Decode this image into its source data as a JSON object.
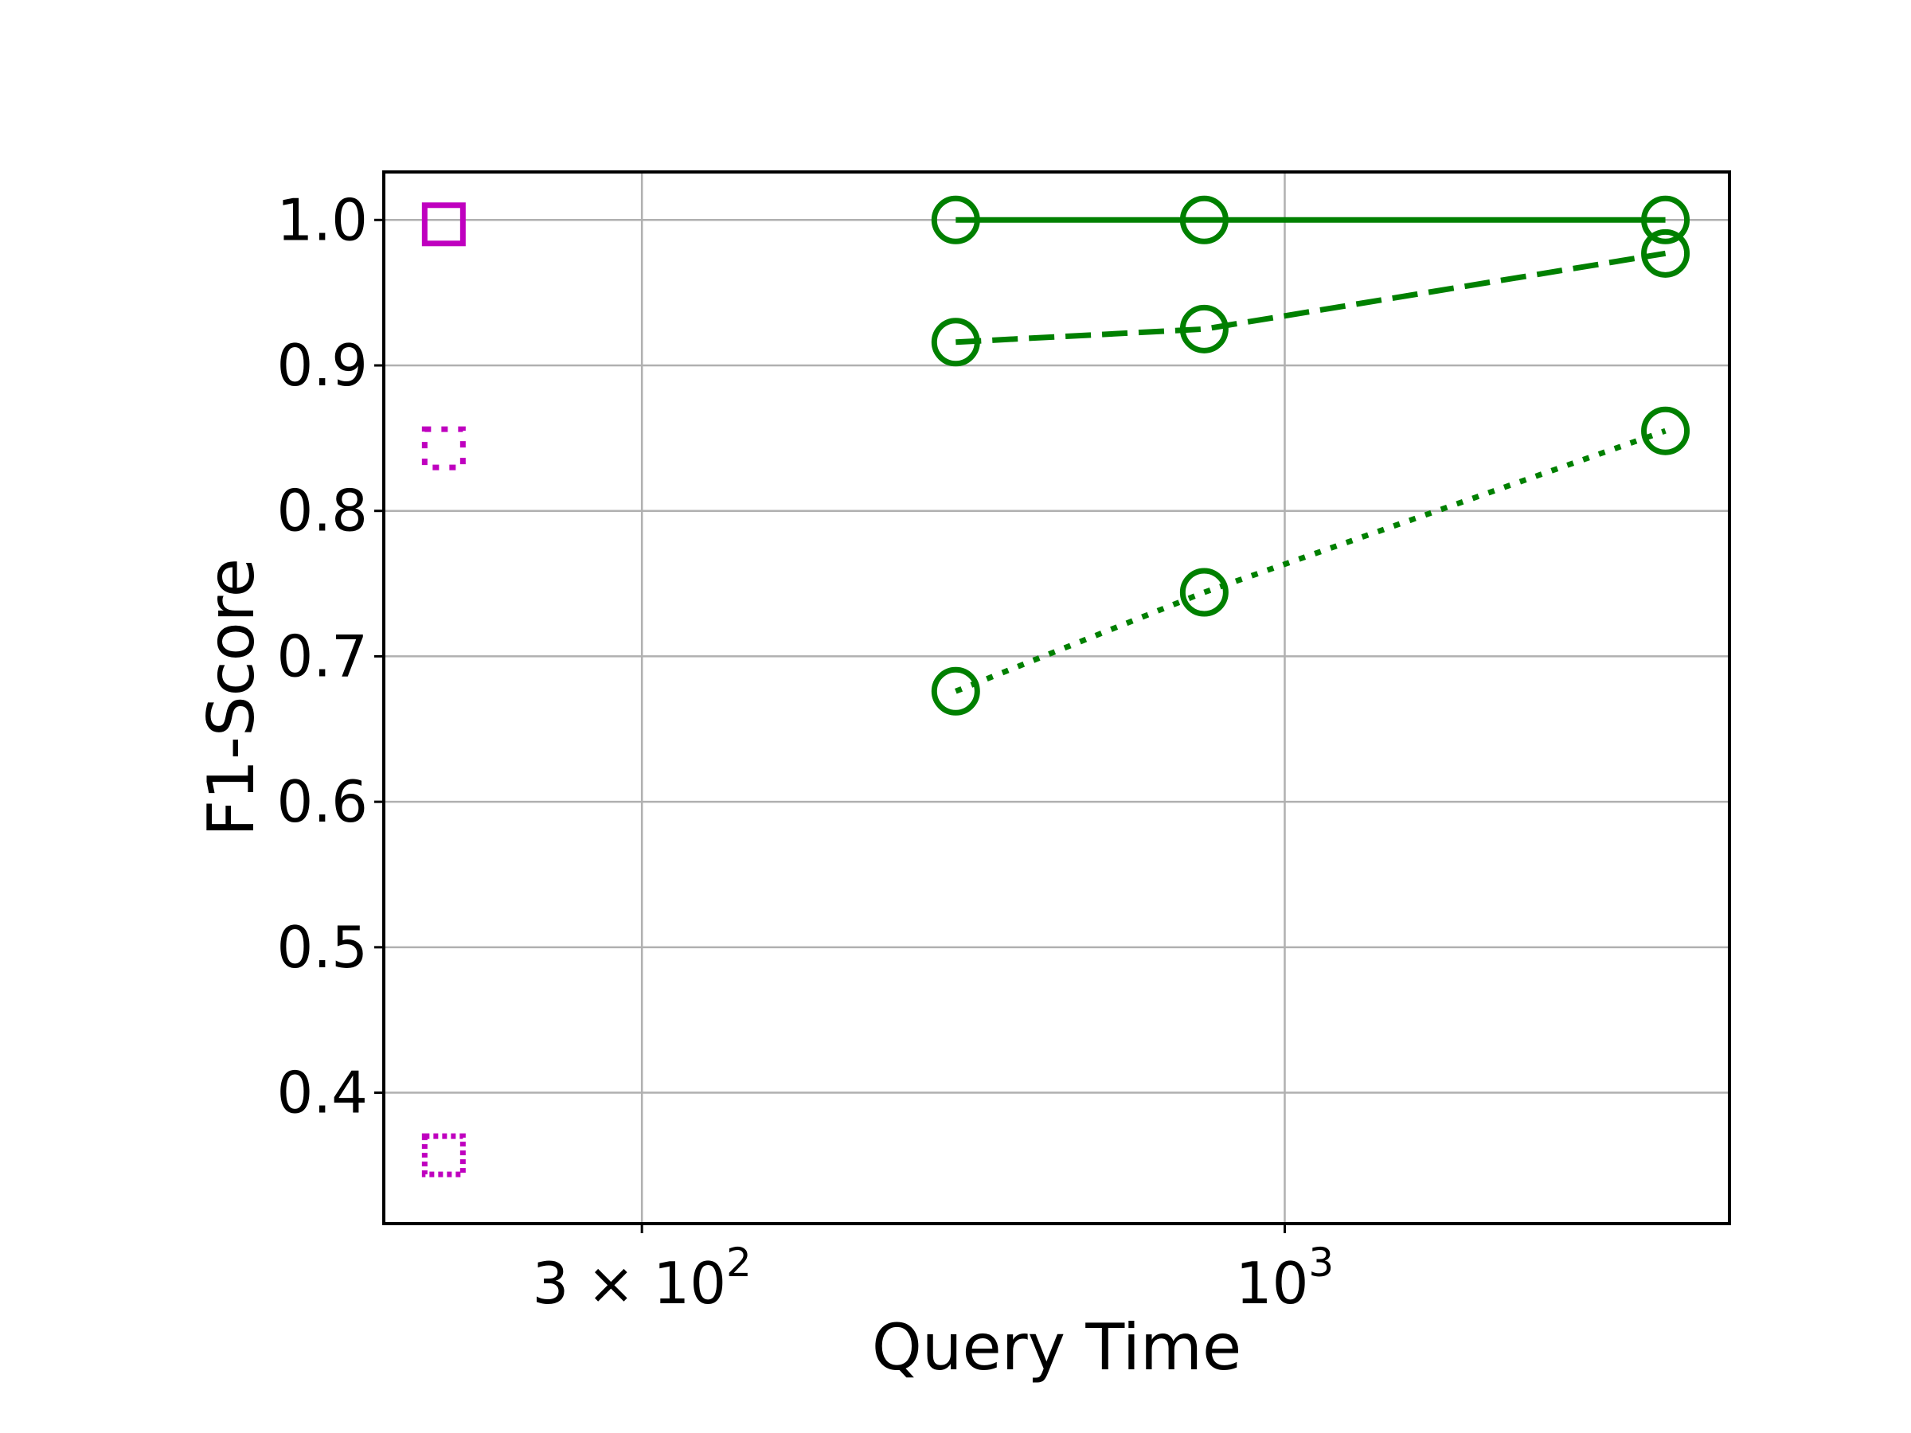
{
  "chart_data": {
    "type": "line",
    "title": "",
    "xlabel": "Query Time",
    "ylabel": "F1-Score",
    "xscale": "log",
    "xlim": [
      185,
      2300
    ],
    "ylim": [
      0.31,
      1.033
    ],
    "grid": true,
    "colors": {
      "green": "#008000",
      "magenta": "#bf00bf",
      "grid": "#b0b0b0",
      "axes": "#000000"
    },
    "x_ticks": [
      {
        "value": 300,
        "label": "3 × 10",
        "sup": "2"
      },
      {
        "value": 1000,
        "label": "10",
        "sup": "3"
      }
    ],
    "y_ticks": [
      {
        "value": 0.4,
        "label": "0.4"
      },
      {
        "value": 0.5,
        "label": "0.5"
      },
      {
        "value": 0.6,
        "label": "0.6"
      },
      {
        "value": 0.7,
        "label": "0.7"
      },
      {
        "value": 0.8,
        "label": "0.8"
      },
      {
        "value": 0.9,
        "label": "0.9"
      },
      {
        "value": 1.0,
        "label": "1.0"
      }
    ],
    "series": [
      {
        "x": [
          540,
          860,
          2040
        ],
        "y": [
          1.0,
          1.0,
          1.0
        ],
        "color": "green",
        "marker": "circle",
        "linestyle": "solid"
      },
      {
        "x": [
          540,
          860,
          2040
        ],
        "y": [
          0.916,
          0.925,
          0.977
        ],
        "color": "green",
        "marker": "circle",
        "linestyle": "dashed"
      },
      {
        "x": [
          540,
          860,
          2040
        ],
        "y": [
          0.676,
          0.744,
          0.855
        ],
        "color": "green",
        "marker": "circle",
        "linestyle": "dotted"
      },
      {
        "x": [
          207
        ],
        "y": [
          0.997
        ],
        "color": "magenta",
        "marker": "square",
        "linestyle": "solid"
      },
      {
        "x": [
          207
        ],
        "y": [
          0.843
        ],
        "color": "magenta",
        "marker": "square",
        "linestyle": "dotted"
      },
      {
        "x": [
          207
        ],
        "y": [
          0.357
        ],
        "color": "magenta",
        "marker": "square",
        "linestyle": "densely-dotted"
      }
    ]
  }
}
